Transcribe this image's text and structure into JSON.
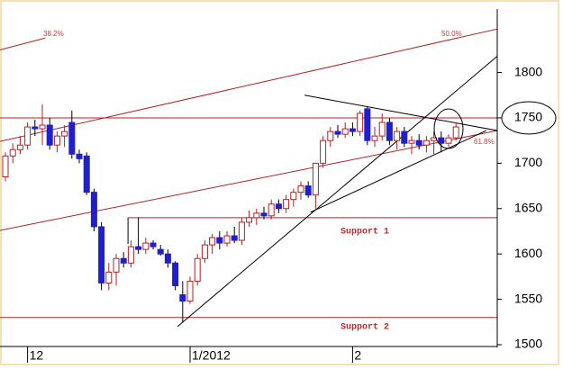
{
  "chart_data": {
    "type": "candlestick",
    "categories": [
      null,
      null,
      null,
      "12",
      null,
      null,
      null,
      null,
      null,
      null,
      null,
      null,
      null,
      null,
      null,
      null,
      null,
      null,
      null,
      null,
      null,
      null,
      null,
      null,
      null,
      "1/2012",
      null,
      null,
      null,
      null,
      null,
      null,
      null,
      null,
      null,
      null,
      null,
      null,
      null,
      null,
      null,
      null,
      null,
      null,
      null,
      null,
      null,
      "2",
      null,
      null,
      null,
      null,
      null,
      null,
      null,
      null,
      null,
      null,
      null,
      null,
      null,
      null
    ],
    "open": [
      1685,
      1708,
      1715,
      1720,
      1740,
      1738,
      1742,
      1720,
      1730,
      1745,
      1710,
      1708,
      1668,
      1630,
      1568,
      1580,
      1595,
      1590,
      1608,
      1605,
      1612,
      1605,
      1600,
      1590,
      1555,
      1548,
      1570,
      1595,
      1610,
      1618,
      1612,
      1620,
      1615,
      1635,
      1640,
      1645,
      1642,
      1655,
      1650,
      1660,
      1668,
      1675,
      1665,
      1700,
      1725,
      1735,
      1732,
      1738,
      1735,
      1760,
      1725,
      1730,
      1745,
      1725,
      1735,
      1722,
      1725,
      1720,
      1725,
      1728,
      1722,
      1728
    ],
    "high": [
      1712,
      1722,
      1730,
      1745,
      1748,
      1765,
      1750,
      1735,
      1742,
      1758,
      1715,
      1712,
      1672,
      1635,
      1590,
      1600,
      1602,
      1615,
      1640,
      1618,
      1615,
      1610,
      1605,
      1592,
      1570,
      1575,
      1600,
      1615,
      1622,
      1625,
      1625,
      1630,
      1640,
      1648,
      1650,
      1652,
      1660,
      1660,
      1665,
      1672,
      1680,
      1680,
      1700,
      1730,
      1740,
      1742,
      1745,
      1745,
      1758,
      1762,
      1740,
      1755,
      1750,
      1740,
      1740,
      1730,
      1732,
      1730,
      1735,
      1735,
      1732,
      1745
    ],
    "low": [
      1680,
      1700,
      1710,
      1715,
      1730,
      1720,
      1715,
      1712,
      1718,
      1705,
      1700,
      1665,
      1625,
      1560,
      1560,
      1565,
      1585,
      1585,
      1600,
      1600,
      1605,
      1598,
      1585,
      1560,
      1525,
      1545,
      1565,
      1590,
      1600,
      1605,
      1608,
      1612,
      1610,
      1630,
      1632,
      1638,
      1638,
      1645,
      1645,
      1652,
      1660,
      1662,
      1650,
      1695,
      1718,
      1728,
      1728,
      1730,
      1730,
      1720,
      1718,
      1725,
      1720,
      1715,
      1718,
      1710,
      1715,
      1712,
      1710,
      1712,
      1718,
      1725
    ],
    "close": [
      1708,
      1715,
      1720,
      1740,
      1738,
      1742,
      1720,
      1730,
      1735,
      1710,
      1705,
      1668,
      1630,
      1568,
      1580,
      1595,
      1590,
      1608,
      1605,
      1612,
      1608,
      1600,
      1590,
      1565,
      1548,
      1570,
      1595,
      1610,
      1618,
      1612,
      1620,
      1615,
      1635,
      1640,
      1645,
      1642,
      1655,
      1650,
      1660,
      1668,
      1675,
      1665,
      1700,
      1725,
      1735,
      1732,
      1738,
      1735,
      1755,
      1725,
      1730,
      1745,
      1725,
      1735,
      1722,
      1725,
      1720,
      1725,
      1728,
      1722,
      1728,
      1740
    ],
    "up_color": "#b22222",
    "down_color": "#1f1fcf",
    "ylim": [
      1498,
      1870
    ],
    "yticks": [
      1500,
      1550,
      1600,
      1650,
      1700,
      1750,
      1800
    ],
    "lines": [
      {
        "color": "#b22222",
        "points": [
          [
            -0.73,
            1724
          ],
          [
            66.6,
            1848
          ]
        ]
      },
      {
        "color": "#b22222",
        "points": [
          [
            -0.73,
            1626
          ],
          [
            66.6,
            1736
          ]
        ]
      },
      {
        "color": "#b22222",
        "points": [
          [
            -0.73,
            1825
          ],
          [
            5.4,
            1838
          ]
        ]
      },
      {
        "color": "#b22222",
        "points": [
          [
            -0.73,
            1750
          ],
          [
            66.6,
            1750
          ]
        ]
      },
      {
        "color": "#b22222",
        "points": [
          [
            16.6,
            1640
          ],
          [
            66.6,
            1640
          ]
        ]
      },
      {
        "color": "#b22222",
        "points": [
          [
            -0.73,
            1530
          ],
          [
            66.6,
            1530
          ]
        ]
      },
      {
        "color": "#000000",
        "points": [
          [
            23.3,
            1520
          ],
          [
            66.6,
            1818
          ]
        ]
      },
      {
        "color": "#000000",
        "points": [
          [
            41.3,
            1646
          ],
          [
            65.1,
            1736
          ]
        ]
      },
      {
        "color": "#000000",
        "points": [
          [
            40.5,
            1775
          ],
          [
            66.6,
            1736
          ]
        ]
      },
      {
        "color": "#000000",
        "points": [
          [
            16.6,
            1640
          ],
          [
            16.6,
            1611
          ]
        ]
      }
    ],
    "annotations": [
      "Support 1",
      "Support 2",
      "38.2%",
      "50.0%",
      "61.8%"
    ]
  }
}
